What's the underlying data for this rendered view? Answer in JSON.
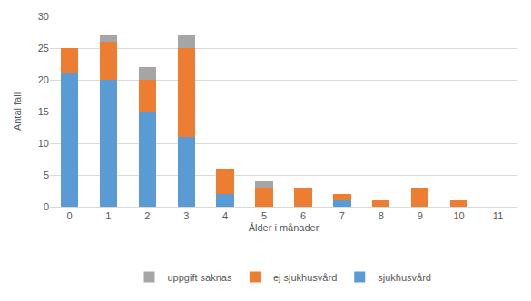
{
  "chart_data": {
    "type": "bar",
    "stacked": true,
    "categories": [
      "0",
      "1",
      "2",
      "3",
      "4",
      "5",
      "6",
      "7",
      "8",
      "9",
      "10",
      "11"
    ],
    "series": [
      {
        "name": "sjukhusvård",
        "color": "#5b9bd5",
        "values": [
          21,
          20,
          15,
          11,
          2,
          0,
          0,
          1,
          0,
          0,
          0,
          0
        ]
      },
      {
        "name": "ej sjukhusvård",
        "color": "#ed7d31",
        "values": [
          4,
          6,
          5,
          14,
          4,
          3,
          3,
          1,
          1,
          3,
          1,
          0
        ]
      },
      {
        "name": "uppgift saknas",
        "color": "#a5a5a5",
        "values": [
          0,
          1,
          2,
          2,
          0,
          1,
          0,
          0,
          0,
          0,
          0,
          0
        ]
      }
    ],
    "x_label": "Ålder i månader",
    "y_label": "Antal fall",
    "ylim": [
      0,
      30
    ],
    "yticks": [
      0,
      5,
      10,
      15,
      20,
      25,
      30
    ],
    "grid": true,
    "legend": "bottom"
  }
}
